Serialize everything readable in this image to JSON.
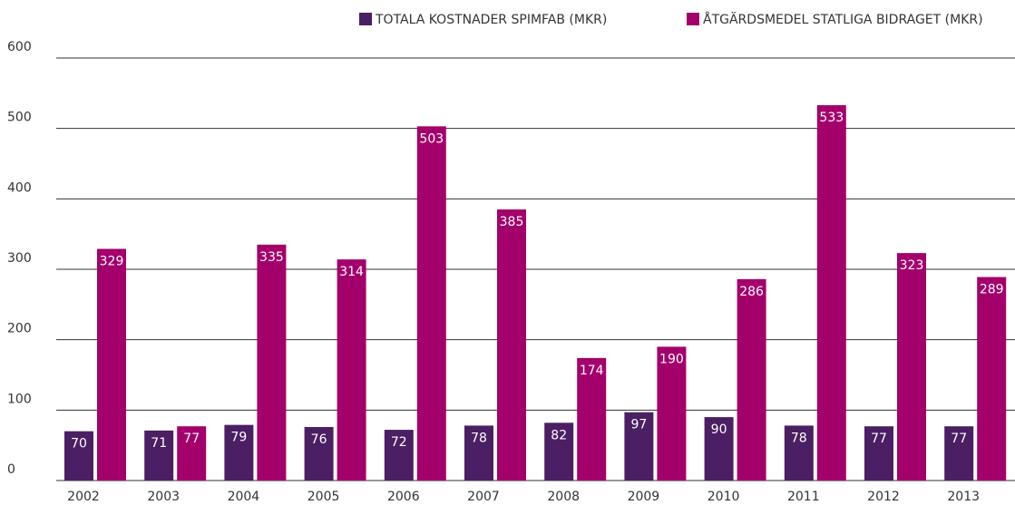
{
  "chart_data": {
    "type": "bar",
    "categories": [
      "2002",
      "2003",
      "2004",
      "2005",
      "2006",
      "2007",
      "2008",
      "2009",
      "2010",
      "2011",
      "2012",
      "2013"
    ],
    "series": [
      {
        "name": "TOTALA KOSTNADER SPIMFAB (MKR)",
        "color": "#4b1f63",
        "values": [
          70,
          71,
          79,
          76,
          72,
          78,
          82,
          97,
          90,
          78,
          77,
          77
        ]
      },
      {
        "name": "ÅTGÄRDSMEDEL STATLIGA BIDRAGET (MKR)",
        "color": "#a4006b",
        "values": [
          329,
          77,
          335,
          314,
          503,
          385,
          174,
          190,
          286,
          533,
          323,
          289
        ]
      }
    ],
    "ylim": [
      0,
      600
    ],
    "yticks": [
      0,
      100,
      200,
      300,
      400,
      500,
      600
    ],
    "grid": true,
    "legend": "top"
  }
}
